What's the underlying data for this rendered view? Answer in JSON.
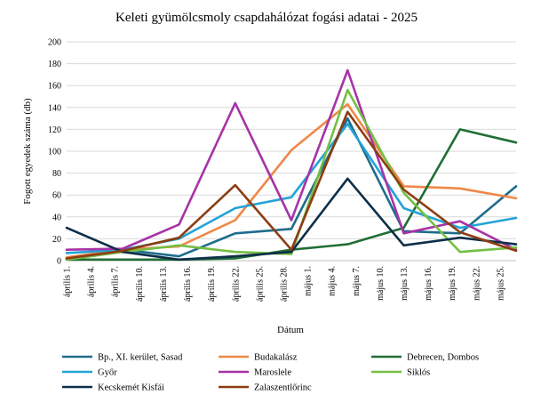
{
  "chart_data": {
    "type": "line",
    "title": "Keleti gyümölcsmoly csapdahálózat fogási adatai - 2025",
    "xlabel": "Dátum",
    "ylabel": "Fogott egyedek száma (db)",
    "ylim": [
      0,
      200
    ],
    "ytick_step": 20,
    "grid": true,
    "legend_position": "bottom",
    "x_start": "április 1.",
    "categories": [
      "április 1.",
      "április 4.",
      "április 7.",
      "április 10.",
      "április 13.",
      "április 16.",
      "április 19.",
      "április 22.",
      "április 25.",
      "április 28.",
      "május 1.",
      "május 4.",
      "május 7.",
      "május 10.",
      "május 13.",
      "május 16.",
      "május 19.",
      "május 22.",
      "május 25."
    ],
    "x_ticks_days": [
      0,
      3,
      6,
      9,
      12,
      15,
      18,
      21,
      24,
      27,
      30,
      33,
      36,
      39,
      42,
      45,
      48,
      51,
      54
    ],
    "series": [
      {
        "name": "Bp., XI. kerület, Sasad",
        "color": "#1f6d8c",
        "points": [
          [
            0,
            2
          ],
          [
            7,
            10
          ],
          [
            14,
            4
          ],
          [
            21,
            25
          ],
          [
            28,
            29
          ],
          [
            35,
            130
          ],
          [
            42,
            27
          ],
          [
            49,
            25
          ],
          [
            56,
            68
          ]
        ]
      },
      {
        "name": "Budakalász",
        "color": "#ee8848",
        "points": [
          [
            0,
            3
          ],
          [
            7,
            10
          ],
          [
            14,
            13
          ],
          [
            21,
            37
          ],
          [
            28,
            101
          ],
          [
            35,
            143
          ],
          [
            42,
            68
          ],
          [
            49,
            66
          ],
          [
            56,
            57
          ]
        ]
      },
      {
        "name": "Debrecen, Dombos",
        "color": "#216e36",
        "points": [
          [
            0,
            1
          ],
          [
            7,
            1
          ],
          [
            14,
            1
          ],
          [
            21,
            2
          ],
          [
            28,
            10
          ],
          [
            35,
            15
          ],
          [
            42,
            30
          ],
          [
            49,
            120
          ],
          [
            56,
            108
          ]
        ]
      },
      {
        "name": "Győr",
        "color": "#23a3d6",
        "points": [
          [
            0,
            7
          ],
          [
            7,
            10
          ],
          [
            14,
            20
          ],
          [
            21,
            48
          ],
          [
            28,
            58
          ],
          [
            35,
            125
          ],
          [
            42,
            48
          ],
          [
            49,
            30
          ],
          [
            56,
            39
          ]
        ]
      },
      {
        "name": "Maroslele",
        "color": "#a733a7",
        "points": [
          [
            0,
            10
          ],
          [
            7,
            11
          ],
          [
            14,
            33
          ],
          [
            21,
            144
          ],
          [
            28,
            37
          ],
          [
            35,
            174
          ],
          [
            42,
            25
          ],
          [
            49,
            36
          ],
          [
            56,
            10
          ]
        ]
      },
      {
        "name": "Siklós",
        "color": "#74bf44",
        "points": [
          [
            0,
            1
          ],
          [
            7,
            8
          ],
          [
            14,
            14
          ],
          [
            21,
            8
          ],
          [
            28,
            6
          ],
          [
            35,
            156
          ],
          [
            42,
            62
          ],
          [
            49,
            8
          ],
          [
            56,
            12
          ]
        ]
      },
      {
        "name": "Kecskemét Kisfái",
        "color": "#0e2f48",
        "points": [
          [
            0,
            30
          ],
          [
            7,
            8
          ],
          [
            14,
            1
          ],
          [
            21,
            4
          ],
          [
            28,
            8
          ],
          [
            35,
            75
          ],
          [
            42,
            14
          ],
          [
            49,
            21
          ],
          [
            56,
            15
          ]
        ]
      },
      {
        "name": "Zalaszentlőrinc",
        "color": "#8c3d12",
        "points": [
          [
            0,
            2
          ],
          [
            7,
            9
          ],
          [
            14,
            21
          ],
          [
            21,
            69
          ],
          [
            28,
            10
          ],
          [
            35,
            136
          ],
          [
            42,
            65
          ],
          [
            49,
            26
          ],
          [
            56,
            9
          ]
        ]
      }
    ]
  }
}
